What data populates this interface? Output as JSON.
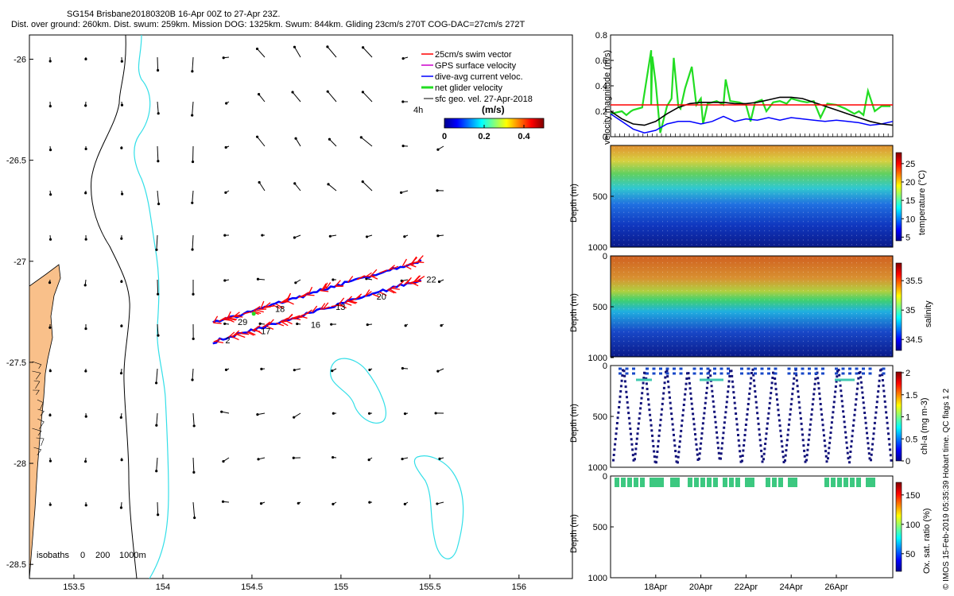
{
  "title": {
    "line1": "SG154 Brisbane20180320B 16-Apr 00Z to 27-Apr 23Z.",
    "line2": "Dist. over ground: 260km. Dist. swum: 259km. Mission DOG: 1325km. Swum: 844km. Gliding 23cm/s 270T COG-DAC=27cm/s 272T"
  },
  "credit": "© IMOS 15-Feb-2019 05:35:39 Hobart time. QC flags 1  2",
  "colors": {
    "land": "#f9c08a",
    "isobath200": "#000000",
    "isobath1000": "#33dfe8",
    "track_swim": "#ff0000",
    "track_dac": "#0000ff",
    "threshold_line": "#ff0000"
  },
  "chart_data": [
    {
      "id": "map",
      "type": "scatter",
      "xlim": [
        153.25,
        156.3
      ],
      "ylim": [
        -28.57,
        -25.88
      ],
      "xticks": [
        153.5,
        154,
        154.5,
        155,
        155.5,
        156
      ],
      "xtick_labels": [
        "153.5",
        "154",
        "154.5",
        "155",
        "155.5",
        "156"
      ],
      "yticks": [
        -26,
        -26.5,
        -27,
        -27.5,
        -28,
        -28.5
      ],
      "ytick_labels": [
        "-26",
        "-26.5",
        "-27",
        "-27.5",
        "-28",
        "-28.5"
      ],
      "legend": [
        {
          "label": "25cm/s swim vector",
          "color": "#ff0000"
        },
        {
          "label": "GPS surface velocity",
          "color": "#cc00cc"
        },
        {
          "label": "dive-avg current veloc.",
          "color": "#0000ff"
        },
        {
          "label": "net glider velocity",
          "color": "#22dd22"
        },
        {
          "label": "sfc geo. vel. 27-Apr-2018",
          "color": "#000000"
        }
      ],
      "legend_extra": "4h",
      "colorbar": {
        "label": "(m/s)",
        "tick_labels": [
          "0",
          "0.2",
          "0.4"
        ],
        "range": [
          0,
          0.5
        ]
      },
      "isobaths_label": "isobaths",
      "isobath_labels": [
        "0",
        "200",
        "1000m"
      ],
      "day_labels": [
        {
          "text": "29",
          "lon": 154.42,
          "lat": -27.315
        },
        {
          "text": "2",
          "lon": 154.35,
          "lat": -27.405
        },
        {
          "text": "17",
          "lon": 154.55,
          "lat": -27.36
        },
        {
          "text": "16",
          "lon": 154.83,
          "lat": -27.33
        },
        {
          "text": "18",
          "lon": 154.63,
          "lat": -27.25
        },
        {
          "text": "13",
          "lon": 154.97,
          "lat": -27.24
        },
        {
          "text": "20",
          "lon": 155.2,
          "lat": -27.19
        },
        {
          "text": "22",
          "lon": 155.48,
          "lat": -27.105
        }
      ],
      "track_start": [
        154.28,
        -27.4
      ],
      "track_end": [
        155.45,
        -27.09
      ]
    },
    {
      "id": "velocity",
      "type": "line",
      "xlim": [
        0,
        12.5
      ],
      "ylim": [
        0,
        0.8
      ],
      "yticks": [
        0,
        0.2,
        0.4,
        0.6,
        0.8
      ],
      "ytick_labels": [
        "0",
        "0.2",
        "0.4",
        "0.6",
        "0.8"
      ],
      "ylabel": "velocity magnitude (m/s)",
      "series": [
        {
          "name": "net glider velocity",
          "color": "#22dd22",
          "x": [
            0,
            0.5,
            0.7,
            0.9,
            1,
            1.4,
            1.8,
            1.8,
            1.85,
            2,
            2.2,
            2.5,
            2.7,
            2.8,
            3,
            3.1,
            3.3,
            3.6,
            3.8,
            4,
            4.1,
            4.3,
            4.7,
            5,
            5.1,
            5.3,
            5.7,
            6,
            6.2,
            6.4,
            6.7,
            6.9,
            7.2,
            7.5,
            7.8,
            8,
            8.4,
            8.7,
            9,
            9.3,
            9.6,
            10,
            10.4,
            10.8,
            11,
            11.2,
            11.4,
            11.7,
            12,
            12.4
          ],
          "y": [
            0.18,
            0.2,
            0.17,
            0.2,
            0.21,
            0.23,
            0.68,
            0.25,
            0.63,
            0.42,
            0.03,
            0.24,
            0.3,
            0.62,
            0.24,
            0.22,
            0.38,
            0.55,
            0.25,
            0.3,
            0.1,
            0.26,
            0.28,
            0.25,
            0.45,
            0.28,
            0.27,
            0.25,
            0.12,
            0.27,
            0.29,
            0.2,
            0.27,
            0.28,
            0.26,
            0.3,
            0.28,
            0.27,
            0.28,
            0.15,
            0.26,
            0.25,
            0.22,
            0.18,
            0.2,
            0.17,
            0.36,
            0.2,
            0.24,
            0.24
          ]
        },
        {
          "name": "dive-avg current veloc.",
          "color": "#0000ff",
          "x": [
            0,
            0.5,
            1,
            1.5,
            2,
            2.5,
            3,
            3.5,
            4,
            4.5,
            5,
            5.5,
            6,
            6.5,
            7,
            7.5,
            8,
            8.5,
            9,
            9.5,
            10,
            10.5,
            11,
            11.5,
            12,
            12.5
          ],
          "y": [
            0.18,
            0.12,
            0.06,
            0.03,
            0.05,
            0.1,
            0.12,
            0.12,
            0.1,
            0.12,
            0.16,
            0.12,
            0.14,
            0.13,
            0.15,
            0.13,
            0.15,
            0.14,
            0.13,
            0.12,
            0.13,
            0.12,
            0.11,
            0.09,
            0.1,
            0.12
          ]
        },
        {
          "name": "sfc geo. vel.",
          "color": "#000000",
          "x": [
            0,
            0.5,
            1,
            1.5,
            2,
            2.5,
            3,
            3.5,
            4,
            4.5,
            5,
            5.5,
            6,
            6.5,
            7,
            7.5,
            8,
            8.5,
            9,
            9.5,
            10,
            10.5,
            11,
            11.5,
            12,
            12.5
          ],
          "y": [
            0.2,
            0.14,
            0.1,
            0.09,
            0.12,
            0.18,
            0.23,
            0.26,
            0.27,
            0.27,
            0.27,
            0.26,
            0.26,
            0.27,
            0.29,
            0.31,
            0.31,
            0.3,
            0.27,
            0.24,
            0.21,
            0.18,
            0.15,
            0.12,
            0.1,
            0.09
          ]
        },
        {
          "name": "25cm/s reference",
          "color": "#ff0000",
          "x": [
            0,
            12.5
          ],
          "y": [
            0.25,
            0.25
          ]
        }
      ]
    },
    {
      "id": "temperature",
      "type": "heatmap",
      "ylabel": "Depth (m)",
      "yticks": [
        0,
        500,
        1000
      ],
      "ytick_labels": [
        "",
        "500",
        "1000"
      ],
      "colorbar_label": "temperature (°C)",
      "colorbar_ticks": [
        5,
        10,
        15,
        20,
        25
      ],
      "colorbar_tick_labels": [
        "5",
        "10",
        "15",
        "20",
        "25"
      ],
      "colorbar_range": [
        4,
        28
      ]
    },
    {
      "id": "salinity",
      "type": "heatmap",
      "ylabel": "Depth (m)",
      "yticks": [
        0,
        500,
        1000
      ],
      "ytick_labels": [
        "0",
        "500",
        "1000"
      ],
      "colorbar_label": "salinity",
      "colorbar_ticks": [
        34.5,
        35,
        35.5
      ],
      "colorbar_tick_labels": [
        "34.5",
        "35",
        "35.5"
      ],
      "colorbar_range": [
        34.3,
        35.8
      ]
    },
    {
      "id": "chla",
      "type": "scatter",
      "ylabel": "Depth (m)",
      "yticks": [
        0,
        500,
        1000
      ],
      "ytick_labels": [
        "0",
        "500",
        "1000"
      ],
      "colorbar_label": "chl-a (mg m-3)",
      "colorbar_ticks": [
        0,
        0.5,
        1,
        1.5,
        2
      ],
      "colorbar_tick_labels": [
        "0",
        "0.5",
        "1",
        "1.5",
        "2"
      ],
      "colorbar_range": [
        0,
        2
      ]
    },
    {
      "id": "oxygen",
      "type": "scatter",
      "ylabel": "Depth (m)",
      "yticks": [
        0,
        500,
        1000
      ],
      "ytick_labels": [
        "0",
        "500",
        "1000"
      ],
      "colorbar_label": "Ox. sat. ratio (%)",
      "colorbar_ticks": [
        50,
        100,
        150
      ],
      "colorbar_tick_labels": [
        "50",
        "100",
        "150"
      ],
      "colorbar_range": [
        20,
        170
      ],
      "xticks": [
        2,
        4,
        6,
        8,
        10
      ],
      "xtick_labels": [
        "18Apr",
        "20Apr",
        "22Apr",
        "24Apr",
        "26Apr"
      ]
    }
  ]
}
